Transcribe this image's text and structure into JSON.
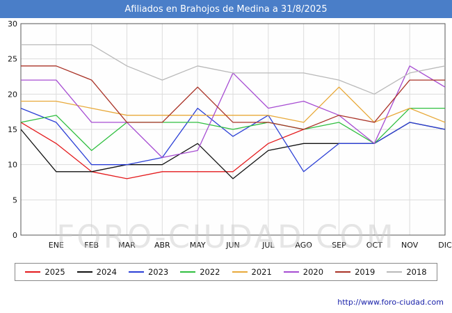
{
  "title": {
    "text": "Afiliados en Brahojos de Medina a 31/8/2025"
  },
  "watermark": "FORO-CIUDAD.COM",
  "footer": {
    "url": "http://www.foro-ciudad.com"
  },
  "colors": {
    "title_bg": "#4a7ec8",
    "title_text": "#ffffff",
    "grid": "#dcdcdc",
    "plot_border": "#555555",
    "axis_text": "#111111",
    "watermark": "#c9c9c9",
    "footer_link": "#1a22aa"
  },
  "chart_data": {
    "type": "line",
    "title": "Afiliados en Brahojos de Medina a 31/8/2025",
    "categories": [
      "ENE",
      "FEB",
      "MAR",
      "ABR",
      "MAY",
      "JUN",
      "JUL",
      "AGO",
      "SEP",
      "OCT",
      "NOV",
      "DIC"
    ],
    "note": "Each series has 13 points: the first point is plotted at the left axis edge before ENE. Nulls mean no data (2025 series ends at AGO, data to 31/8/2025).",
    "ylim": [
      0,
      30
    ],
    "yticks": [
      0,
      5,
      10,
      15,
      20,
      25,
      30
    ],
    "grid": true,
    "legend_position": "bottom",
    "series": [
      {
        "name": "2025",
        "color": "#e41a1c",
        "values": [
          16,
          13,
          9,
          8,
          9,
          9,
          9,
          13,
          15,
          null,
          null,
          null,
          null
        ]
      },
      {
        "name": "2024",
        "color": "#111111",
        "values": [
          15,
          9,
          9,
          10,
          10,
          13,
          8,
          12,
          13,
          13,
          13,
          16,
          15
        ]
      },
      {
        "name": "2023",
        "color": "#2b3fd6",
        "values": [
          18,
          16,
          10,
          10,
          11,
          18,
          14,
          17,
          9,
          13,
          13,
          16,
          15
        ]
      },
      {
        "name": "2022",
        "color": "#2fbf3f",
        "values": [
          16,
          17,
          12,
          16,
          16,
          16,
          15,
          16,
          15,
          16,
          13,
          18,
          18
        ]
      },
      {
        "name": "2021",
        "color": "#e8a93a",
        "values": [
          19,
          19,
          18,
          17,
          17,
          17,
          17,
          17,
          16,
          21,
          16,
          18,
          16
        ]
      },
      {
        "name": "2020",
        "color": "#a64cd2",
        "values": [
          22,
          22,
          16,
          16,
          11,
          12,
          23,
          18,
          19,
          17,
          13,
          24,
          21
        ]
      },
      {
        "name": "2019",
        "color": "#a93226",
        "values": [
          24,
          24,
          22,
          16,
          16,
          21,
          16,
          16,
          15,
          17,
          16,
          22,
          22
        ]
      },
      {
        "name": "2018",
        "color": "#b9b9b9",
        "values": [
          27,
          27,
          27,
          24,
          22,
          24,
          23,
          23,
          23,
          22,
          20,
          23,
          24
        ]
      }
    ]
  }
}
